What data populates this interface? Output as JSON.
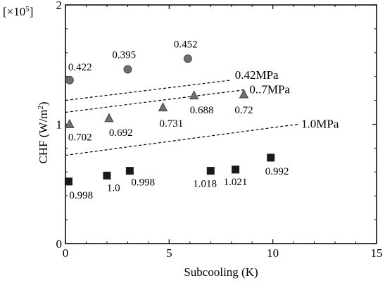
{
  "chart_data": {
    "type": "scatter",
    "xlabel": "Subcooling (K)",
    "ylabel_main": "CHF (W/m",
    "ylabel_sup": "2",
    "ylabel_end": ")",
    "y_multiplier_prefix": "[×10",
    "y_multiplier_exp": "5",
    "y_multiplier_suffix": "]",
    "xlim": [
      0,
      15
    ],
    "ylim": [
      0,
      2
    ],
    "x_ticks": [
      0,
      5,
      10,
      15
    ],
    "y_ticks": [
      0,
      1,
      2
    ],
    "x_tick_labels": [
      "0",
      "5",
      "10",
      "15"
    ],
    "y_tick_labels": [
      "0",
      "1",
      "2"
    ],
    "grid": false,
    "series": [
      {
        "marker": "circle",
        "color": "#6f6f6f",
        "points": [
          {
            "x": 0.2,
            "y": 1.37,
            "label": "0.422"
          },
          {
            "x": 3.0,
            "y": 1.46,
            "label": "0.395"
          },
          {
            "x": 5.9,
            "y": 1.55,
            "label": "0.452"
          }
        ]
      },
      {
        "marker": "triangle",
        "color": "#6f6f6f",
        "points": [
          {
            "x": 0.2,
            "y": 1.0,
            "label": "0.702"
          },
          {
            "x": 2.1,
            "y": 1.05,
            "label": "0.692"
          },
          {
            "x": 4.7,
            "y": 1.14,
            "label": "0.731"
          },
          {
            "x": 6.2,
            "y": 1.24,
            "label": "0.688"
          },
          {
            "x": 8.6,
            "y": 1.25,
            "label": "0.72"
          }
        ]
      },
      {
        "marker": "square",
        "color": "#1a1a1a",
        "points": [
          {
            "x": 0.15,
            "y": 0.52,
            "label": "0.998"
          },
          {
            "x": 2.0,
            "y": 0.57,
            "label": "1.0"
          },
          {
            "x": 3.1,
            "y": 0.61,
            "label": "0.998"
          },
          {
            "x": 7.0,
            "y": 0.61,
            "label": "1.018"
          },
          {
            "x": 8.2,
            "y": 0.62,
            "label": "1.021"
          },
          {
            "x": 9.9,
            "y": 0.72,
            "label": "0.992"
          }
        ]
      }
    ],
    "lines": [
      {
        "label": "0.42MPa",
        "x": [
          0,
          8.0
        ],
        "y": [
          1.2,
          1.37
        ]
      },
      {
        "label": "0..7MPa",
        "x": [
          0,
          8.7
        ],
        "y": [
          1.1,
          1.29
        ]
      },
      {
        "label": "1.0MPa",
        "x": [
          0,
          11.2
        ],
        "y": [
          0.74,
          1.0
        ]
      }
    ]
  }
}
